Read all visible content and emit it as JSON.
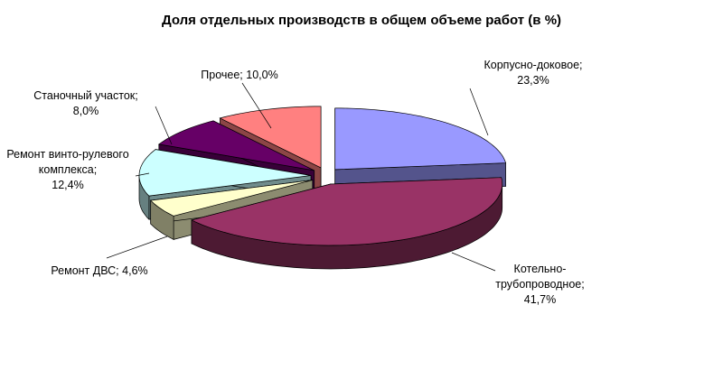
{
  "chart_data": {
    "type": "pie3d",
    "title": "Доля отдельных производств в общем объеме работ (в %)",
    "categories": [
      "Корпусно-доковое",
      "Котельно-трубопроводное",
      "Ремонт ДВС",
      "Ремонт винто-рулевого комплекса",
      "Станочный участок",
      "Прочее"
    ],
    "values": [
      23.3,
      41.7,
      4.6,
      12.4,
      8.0,
      10.0
    ],
    "value_labels": [
      "23,3%",
      "41,7%",
      "4,6%",
      "12,4%",
      "8,0%",
      "10,0%"
    ],
    "label_separator": ";",
    "colors": [
      "#9999ff",
      "#993366",
      "#ffffcc",
      "#ccffff",
      "#660066",
      "#ff8080"
    ]
  }
}
